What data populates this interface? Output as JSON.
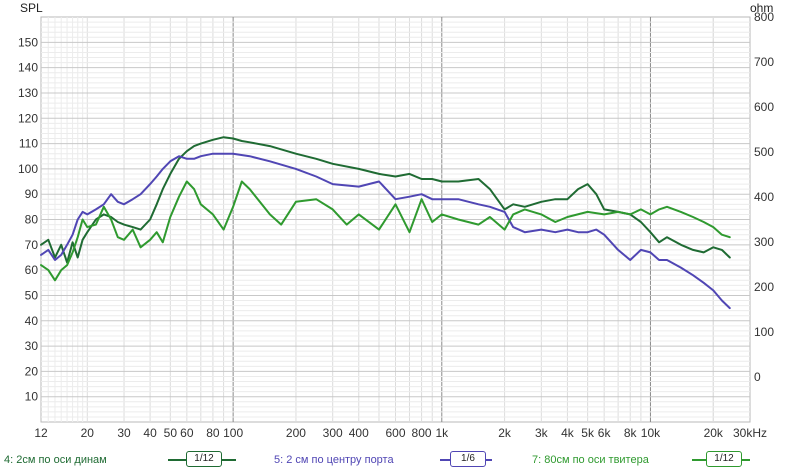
{
  "chart_data": {
    "type": "line",
    "xscale": "log",
    "xlim": [
      12,
      30000
    ],
    "ylabel_left": "SPL",
    "ylabel_right": "ohm",
    "ylim_left": [
      0,
      160
    ],
    "ylim_right": [
      -100,
      800
    ],
    "grid": true,
    "x_ticks": [
      {
        "v": 12,
        "t": "12"
      },
      {
        "v": 20,
        "t": "20"
      },
      {
        "v": 30,
        "t": "30"
      },
      {
        "v": 40,
        "t": "40"
      },
      {
        "v": 50,
        "t": "50"
      },
      {
        "v": 60,
        "t": "60"
      },
      {
        "v": 80,
        "t": "80"
      },
      {
        "v": 100,
        "t": "100"
      },
      {
        "v": 200,
        "t": "200"
      },
      {
        "v": 300,
        "t": "300"
      },
      {
        "v": 400,
        "t": "400"
      },
      {
        "v": 600,
        "t": "600"
      },
      {
        "v": 800,
        "t": "800"
      },
      {
        "v": 1000,
        "t": "1k"
      },
      {
        "v": 2000,
        "t": "2k"
      },
      {
        "v": 3000,
        "t": "3k"
      },
      {
        "v": 4000,
        "t": "4k"
      },
      {
        "v": 5000,
        "t": "5k"
      },
      {
        "v": 6000,
        "t": "6k"
      },
      {
        "v": 8000,
        "t": "8k"
      },
      {
        "v": 10000,
        "t": "10k"
      },
      {
        "v": 20000,
        "t": "20k"
      },
      {
        "v": 30000,
        "t": "30kHz"
      }
    ],
    "y_ticks_left": [
      10,
      20,
      30,
      40,
      50,
      60,
      70,
      80,
      90,
      100,
      110,
      120,
      130,
      140,
      150
    ],
    "y_ticks_right": [
      0,
      100,
      200,
      300,
      400,
      500,
      600,
      700,
      800
    ],
    "series": [
      {
        "name": "4: 2см по оси динам",
        "color": "#1f6b33",
        "x": [
          12,
          13,
          14,
          15,
          16,
          17,
          18,
          19,
          20,
          22,
          24,
          26,
          28,
          30,
          33,
          36,
          40,
          43,
          46,
          50,
          55,
          60,
          65,
          70,
          80,
          90,
          100,
          110,
          120,
          150,
          200,
          250,
          300,
          400,
          500,
          600,
          700,
          800,
          900,
          1000,
          1200,
          1500,
          1700,
          2000,
          2200,
          2500,
          3000,
          3500,
          4000,
          4500,
          5000,
          5500,
          6000,
          7000,
          8000,
          9000,
          10000,
          11000,
          12000,
          14000,
          16000,
          18000,
          20000,
          22000,
          24000
        ],
        "y": [
          70,
          72,
          65,
          70,
          63,
          71,
          65,
          72,
          75,
          80,
          82,
          81,
          79,
          78,
          77,
          76,
          80,
          86,
          92,
          98,
          104,
          107,
          109,
          110,
          111.5,
          112.5,
          112,
          111,
          110.5,
          109,
          106,
          104,
          102,
          100,
          98,
          97,
          98,
          96,
          96,
          95,
          95,
          96,
          92,
          84,
          86,
          85,
          87,
          88,
          88,
          92,
          94,
          90,
          84,
          83,
          82,
          79,
          75,
          71,
          73,
          70,
          68,
          67,
          69,
          68,
          65
        ]
      },
      {
        "name": "5: 2 см по центру порта",
        "color": "#5046b4",
        "x": [
          12,
          13,
          14,
          15,
          16,
          17,
          18,
          19,
          20,
          22,
          24,
          26,
          28,
          30,
          33,
          36,
          40,
          43,
          46,
          50,
          55,
          60,
          65,
          70,
          80,
          90,
          100,
          120,
          150,
          200,
          250,
          300,
          400,
          500,
          600,
          700,
          800,
          900,
          1000,
          1200,
          1500,
          1700,
          2000,
          2200,
          2500,
          3000,
          3500,
          4000,
          4500,
          5000,
          5500,
          6000,
          7000,
          8000,
          9000,
          10000,
          11000,
          12000,
          14000,
          16000,
          18000,
          20000,
          22000,
          24000
        ],
        "y": [
          66,
          68,
          64,
          66,
          70,
          74,
          80,
          83,
          82,
          84,
          86,
          90,
          87,
          86,
          88,
          90,
          94,
          97,
          100,
          103,
          105,
          104,
          104,
          105,
          106,
          106,
          106,
          105,
          103,
          100,
          97,
          94,
          93,
          95,
          88,
          89,
          90,
          88,
          88,
          88,
          86,
          85,
          83,
          77,
          75,
          76,
          75,
          76,
          75,
          75,
          76,
          74,
          68,
          64,
          68,
          67,
          64,
          64,
          61,
          58,
          55,
          52,
          48,
          45
        ]
      },
      {
        "name": "7: 80см по оси твитера",
        "color": "#2f9a2f",
        "x": [
          12,
          13,
          14,
          15,
          16,
          17,
          18,
          19,
          20,
          22,
          24,
          26,
          28,
          30,
          33,
          36,
          40,
          43,
          46,
          50,
          55,
          60,
          65,
          70,
          80,
          90,
          100,
          110,
          120,
          150,
          170,
          200,
          250,
          300,
          350,
          400,
          500,
          600,
          700,
          800,
          900,
          1000,
          1200,
          1500,
          1700,
          2000,
          2200,
          2500,
          3000,
          3500,
          4000,
          5000,
          6000,
          7000,
          8000,
          9000,
          10000,
          11000,
          12000,
          14000,
          16000,
          18000,
          20000,
          22000,
          24000
        ],
        "y": [
          62,
          60,
          56,
          60,
          62,
          67,
          73,
          80,
          77,
          78,
          85,
          80,
          73,
          72,
          76,
          69,
          72,
          75,
          71,
          81,
          89,
          95,
          92,
          86,
          82,
          76,
          85,
          95,
          92,
          82,
          78,
          87,
          88,
          84,
          78,
          82,
          76,
          86,
          75,
          88,
          79,
          82,
          80,
          78,
          81,
          76,
          82,
          84,
          82,
          79,
          81,
          83,
          82,
          83,
          82,
          84,
          82,
          84,
          85,
          83,
          81,
          79,
          77,
          74,
          73
        ]
      }
    ]
  },
  "legend": [
    {
      "label": "4: 2см по оси динам",
      "smoothing": "1/12",
      "color": "#1f6b33"
    },
    {
      "label": "5: 2 см по центру порта",
      "smoothing": "1/6",
      "color": "#5046b4"
    },
    {
      "label": "7: 80см по оси твитера",
      "smoothing": "1/12",
      "color": "#2f9a2f"
    }
  ]
}
